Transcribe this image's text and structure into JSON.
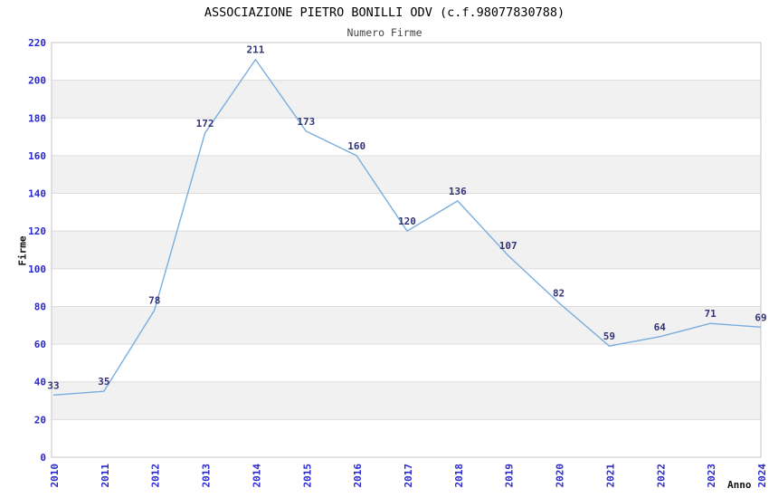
{
  "chart_data": {
    "type": "line",
    "title": "ASSOCIAZIONE PIETRO BONILLI ODV (c.f.98077830788)",
    "subtitle": "Numero Firme",
    "xlabel": "Anno",
    "ylabel": "Firme",
    "categories": [
      "2010",
      "2011",
      "2012",
      "2013",
      "2014",
      "2015",
      "2016",
      "2017",
      "2018",
      "2019",
      "2020",
      "2021",
      "2022",
      "2023",
      "2024"
    ],
    "values": [
      33,
      35,
      78,
      172,
      211,
      173,
      160,
      120,
      136,
      107,
      82,
      59,
      64,
      71,
      69
    ],
    "ylim": [
      0,
      220
    ],
    "ytick_step": 20,
    "yticks": [
      0,
      20,
      40,
      60,
      80,
      100,
      120,
      140,
      160,
      180,
      200,
      220
    ],
    "grid": "horizontal-bands-alternating",
    "legend": "none",
    "point_labels_visible": true,
    "colors": {
      "line": "#7aaede",
      "point_label": "#333377",
      "tick_label": "#2828cc",
      "band": "#f1f1f1",
      "band_line": "#dcdcdc",
      "plot_border": "#c6c6c6",
      "title": "#000000",
      "subtitle": "#444444",
      "axis_title": "#111111",
      "background": "#ffffff"
    }
  }
}
